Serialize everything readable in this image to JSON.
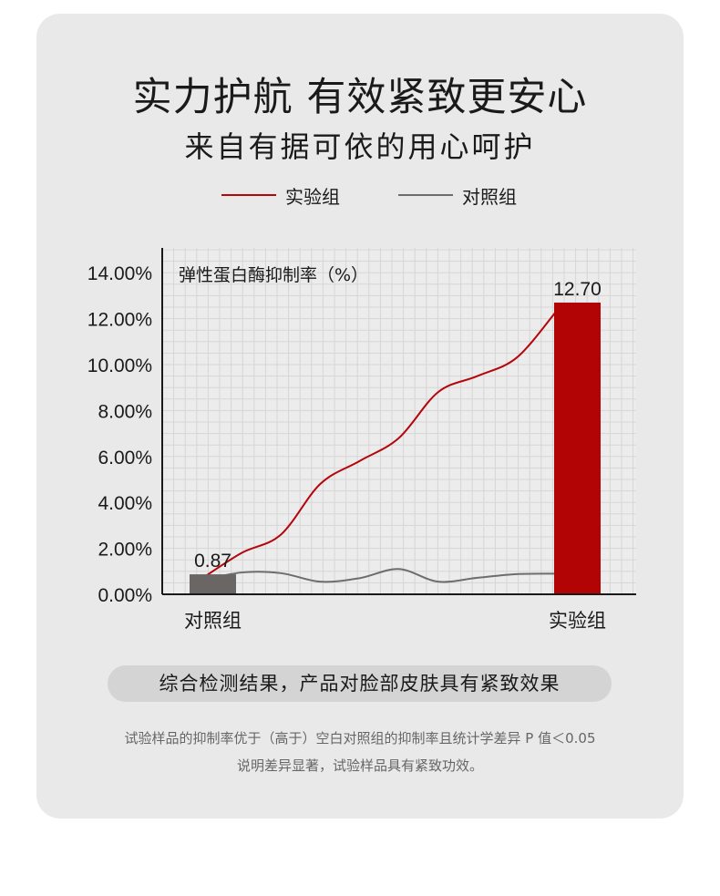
{
  "header": {
    "title": "实力护航 有效紧致更安心",
    "subtitle": "来自有据可依的用心呵护"
  },
  "legend": [
    {
      "label": "实验组",
      "color": "#b4060b"
    },
    {
      "label": "对照组",
      "color": "#6d6d6d"
    }
  ],
  "summary": "综合检测结果，产品对脸部皮肤具有紧致效果",
  "footnote": {
    "line1": "试验样品的抑制率优于（高于）空白对照组的抑制率且统计学差异 P 值＜0.05",
    "line2": "说明差异显著，试验样品具有紧致功效。"
  },
  "chart_data": {
    "type": "bar",
    "title": "弹性蛋白酶抑制率（%）",
    "categories": [
      "对照组",
      "实验组"
    ],
    "values": [
      0.87,
      12.7
    ],
    "value_labels": [
      "0.87",
      "12.70"
    ],
    "bar_colors": [
      "#6a6666",
      "#b30405"
    ],
    "ylim": [
      0,
      15
    ],
    "yticks": [
      "0.00%",
      "2.00%",
      "4.00%",
      "6.00%",
      "8.00%",
      "10.00%",
      "12.00%",
      "14.00%"
    ],
    "ytick_values": [
      0,
      2,
      4,
      6,
      8,
      10,
      12,
      14
    ],
    "grid": true,
    "decorative_curves": [
      {
        "name": "实验组",
        "color": "#b4060b",
        "y": [
          0.7,
          1.8,
          2.6,
          4.8,
          5.8,
          6.8,
          8.8,
          9.5,
          10.3,
          12.3
        ]
      },
      {
        "name": "对照组",
        "color": "#6d6d6d",
        "y": [
          0.6,
          0.95,
          0.92,
          0.55,
          0.7,
          1.1,
          0.55,
          0.72,
          0.88,
          0.9
        ]
      }
    ]
  }
}
